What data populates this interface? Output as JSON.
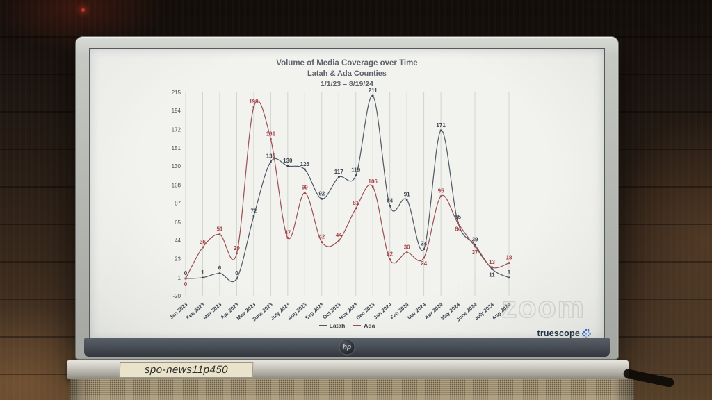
{
  "scene": {
    "watermark_text": "zoom",
    "laptop_label": "spo-news11p450",
    "hp_logo_text": "hp"
  },
  "screen": {
    "brand_label": "truescope"
  },
  "chart_data": {
    "type": "line",
    "title": "Volume of Media Coverage over Time",
    "subtitle": "Latah & Ada Counties",
    "date_range": "1/1/23 – 8/19/24",
    "categories": [
      "Jan 2023",
      "Feb 2023",
      "Mar 2023",
      "Apr 2023",
      "May 2023",
      "June 2023",
      "July 2023",
      "Aug 2023",
      "Sep 2023",
      "Oct 2023",
      "Nov 2023",
      "Dec 2023",
      "Jan 2024",
      "Feb 2024",
      "Mar 2024",
      "Apr 2024",
      "May 2024",
      "June 2024",
      "July 2024",
      "Aug 2024"
    ],
    "series": [
      {
        "name": "Latah",
        "color": "#4e5866",
        "label_color": "#3e4653",
        "values": [
          0,
          1,
          6,
          0,
          72,
          135,
          130,
          126,
          92,
          117,
          119,
          211,
          84,
          91,
          34,
          171,
          65,
          39,
          11,
          1
        ]
      },
      {
        "name": "Ada",
        "color": "#9b4f53",
        "label_color": "#a84449",
        "values": [
          0,
          36,
          51,
          29,
          198,
          161,
          47,
          99,
          42,
          44,
          81,
          106,
          22,
          30,
          24,
          95,
          64,
          37,
          13,
          18
        ]
      }
    ],
    "y_ticks": [
      -20,
      1,
      23,
      44,
      65,
      87,
      108,
      130,
      151,
      172,
      194,
      215
    ],
    "ylim": [
      -20,
      215
    ],
    "grid": "vertical-monthly",
    "show_data_labels": true,
    "legend_position": "bottom-center"
  }
}
